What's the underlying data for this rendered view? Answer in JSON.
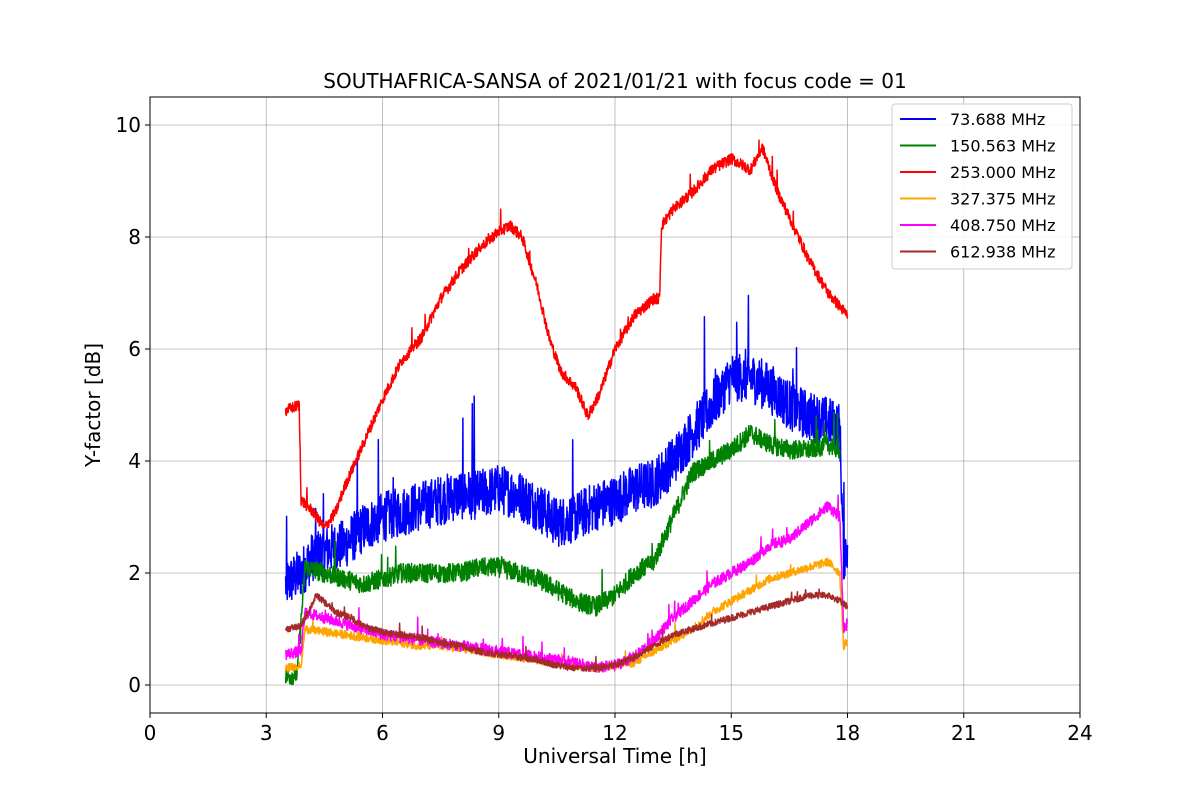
{
  "chart_data": {
    "type": "line",
    "title": "SOUTHAFRICA-SANSA of 2021/01/21 with focus code = 01",
    "xlabel": "Universal Time [h]",
    "ylabel": "Y-factor [dB]",
    "xlim": [
      0,
      24
    ],
    "ylim": [
      -0.5,
      10.5
    ],
    "xticks": [
      0,
      3,
      6,
      9,
      12,
      15,
      18,
      21,
      24
    ],
    "yticks": [
      0,
      2,
      4,
      6,
      8,
      10
    ],
    "xtick_labels": [
      "0",
      "3",
      "6",
      "9",
      "12",
      "15",
      "18",
      "21",
      "24"
    ],
    "ytick_labels": [
      "0",
      "2",
      "4",
      "6",
      "8",
      "10"
    ],
    "grid": true,
    "legend_position": "top-right",
    "series": [
      {
        "name": "73.688 MHz",
        "color": "#0000ff",
        "noise": 0.9,
        "x": [
          3.5,
          3.9,
          4.2,
          4.5,
          5.0,
          5.5,
          6.0,
          6.5,
          7.0,
          7.5,
          8.0,
          8.5,
          9.0,
          9.5,
          10.0,
          10.5,
          11.0,
          11.5,
          12.0,
          12.5,
          13.0,
          13.5,
          14.0,
          14.5,
          15.0,
          15.5,
          16.0,
          16.5,
          17.0,
          17.5,
          17.8,
          17.9,
          18.0
        ],
        "y": [
          1.8,
          2.0,
          2.3,
          2.4,
          2.5,
          2.8,
          3.0,
          3.1,
          3.2,
          3.3,
          3.4,
          3.4,
          3.5,
          3.4,
          3.2,
          2.9,
          3.0,
          3.2,
          3.3,
          3.5,
          3.6,
          4.0,
          4.5,
          5.0,
          5.5,
          5.5,
          5.3,
          5.0,
          4.8,
          4.7,
          4.6,
          2.3,
          2.5
        ]
      },
      {
        "name": "150.563 MHz",
        "color": "#008000",
        "noise": 0.35,
        "x": [
          3.5,
          3.8,
          4.0,
          4.5,
          5.0,
          5.5,
          6.0,
          6.5,
          7.0,
          7.5,
          8.0,
          8.5,
          9.0,
          9.5,
          10.0,
          10.5,
          11.0,
          11.5,
          12.0,
          12.5,
          13.0,
          13.5,
          14.0,
          14.5,
          15.0,
          15.5,
          16.0,
          16.5,
          17.0,
          17.5,
          17.8
        ],
        "y": [
          0.15,
          0.2,
          2.1,
          2.0,
          1.9,
          1.8,
          1.9,
          2.0,
          2.0,
          2.0,
          2.0,
          2.1,
          2.1,
          2.0,
          1.9,
          1.7,
          1.5,
          1.4,
          1.6,
          2.0,
          2.2,
          3.0,
          3.8,
          4.0,
          4.2,
          4.5,
          4.3,
          4.2,
          4.2,
          4.3,
          4.2
        ]
      },
      {
        "name": "253.000 MHz",
        "color": "#ff0000",
        "noise": 0.2,
        "x": [
          3.5,
          3.85,
          3.9,
          4.2,
          4.5,
          4.8,
          5.0,
          5.5,
          6.0,
          6.5,
          7.0,
          7.5,
          8.0,
          8.5,
          9.0,
          9.3,
          9.6,
          10.0,
          10.3,
          10.6,
          11.0,
          11.3,
          11.6,
          12.0,
          12.5,
          13.0,
          13.15,
          13.2,
          13.5,
          14.0,
          14.5,
          15.0,
          15.5,
          15.8,
          16.2,
          16.6,
          17.0,
          17.5,
          18.0
        ],
        "y": [
          4.9,
          5.0,
          3.3,
          3.1,
          2.8,
          3.1,
          3.5,
          4.3,
          5.1,
          5.8,
          6.2,
          6.9,
          7.4,
          7.8,
          8.1,
          8.2,
          8.0,
          7.1,
          6.2,
          5.6,
          5.3,
          4.8,
          5.2,
          6.0,
          6.6,
          6.9,
          6.9,
          8.2,
          8.5,
          8.8,
          9.2,
          9.4,
          9.2,
          9.6,
          8.8,
          8.2,
          7.6,
          7.0,
          6.6
        ]
      },
      {
        "name": "327.375 MHz",
        "color": "#ffa500",
        "noise": 0.15,
        "x": [
          3.5,
          3.9,
          4.0,
          4.5,
          5.0,
          5.5,
          6.0,
          6.5,
          7.0,
          7.5,
          8.0,
          8.5,
          9.0,
          9.5,
          10.0,
          10.5,
          11.0,
          11.5,
          12.0,
          12.5,
          13.0,
          13.5,
          14.0,
          14.5,
          15.0,
          15.5,
          16.0,
          16.5,
          17.0,
          17.5,
          17.8,
          17.9,
          18.0
        ],
        "y": [
          0.3,
          0.35,
          1.0,
          0.95,
          0.9,
          0.85,
          0.8,
          0.75,
          0.7,
          0.7,
          0.65,
          0.6,
          0.55,
          0.5,
          0.45,
          0.4,
          0.35,
          0.3,
          0.35,
          0.4,
          0.6,
          0.8,
          1.0,
          1.3,
          1.5,
          1.7,
          1.9,
          2.0,
          2.1,
          2.2,
          2.0,
          0.7,
          0.8
        ]
      },
      {
        "name": "408.750 MHz",
        "color": "#ff00ff",
        "noise": 0.2,
        "x": [
          3.5,
          3.9,
          4.0,
          4.5,
          5.0,
          5.5,
          6.0,
          6.5,
          7.0,
          7.5,
          8.0,
          8.5,
          9.0,
          9.5,
          10.0,
          10.5,
          11.0,
          11.5,
          12.0,
          12.5,
          13.0,
          13.5,
          14.0,
          14.5,
          15.0,
          15.5,
          16.0,
          16.5,
          17.0,
          17.5,
          17.8,
          17.9,
          18.0
        ],
        "y": [
          0.55,
          0.6,
          1.3,
          1.2,
          1.1,
          1.0,
          0.9,
          0.85,
          0.8,
          0.75,
          0.7,
          0.65,
          0.6,
          0.55,
          0.5,
          0.45,
          0.4,
          0.3,
          0.35,
          0.5,
          0.8,
          1.2,
          1.5,
          1.8,
          2.0,
          2.2,
          2.5,
          2.6,
          2.9,
          3.2,
          3.0,
          1.0,
          1.1
        ]
      },
      {
        "name": "612.938 MHz",
        "color": "#a52a2a",
        "noise": 0.12,
        "x": [
          3.5,
          3.9,
          4.0,
          4.3,
          4.8,
          5.2,
          5.5,
          6.0,
          6.5,
          7.0,
          7.5,
          8.0,
          8.5,
          9.0,
          9.5,
          10.0,
          10.5,
          11.0,
          11.5,
          12.0,
          12.5,
          13.0,
          13.5,
          14.0,
          14.5,
          15.0,
          15.5,
          16.0,
          16.5,
          17.0,
          17.5,
          17.8,
          18.0
        ],
        "y": [
          1.0,
          1.05,
          1.2,
          1.6,
          1.3,
          1.2,
          1.05,
          0.95,
          0.9,
          0.85,
          0.75,
          0.7,
          0.6,
          0.55,
          0.5,
          0.45,
          0.35,
          0.3,
          0.3,
          0.35,
          0.5,
          0.7,
          0.9,
          1.0,
          1.1,
          1.2,
          1.3,
          1.4,
          1.5,
          1.6,
          1.6,
          1.5,
          1.4
        ]
      }
    ]
  }
}
